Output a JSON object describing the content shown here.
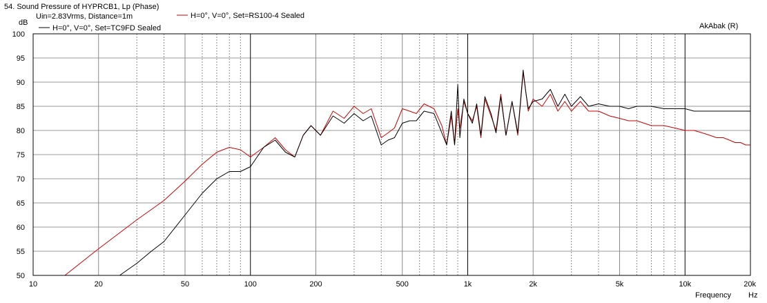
{
  "chart_data": {
    "type": "line",
    "title": "54. Sound Pressure of HYPRCB1, Lp (Phase)",
    "subtitle": "Uin=2.83Vrms, Distance=1m",
    "watermark": "AkAbak (R)",
    "xlabel": "Frequency",
    "xunit": "Hz",
    "ylabel": "dB",
    "xscale": "log",
    "xlim": [
      10,
      20000
    ],
    "ylim": [
      50,
      100
    ],
    "grid": true,
    "x_tick_labels": [
      {
        "v": 10,
        "label": "10"
      },
      {
        "v": 20,
        "label": "20"
      },
      {
        "v": 50,
        "label": "50"
      },
      {
        "v": 100,
        "label": "100"
      },
      {
        "v": 200,
        "label": "200"
      },
      {
        "v": 500,
        "label": "500"
      },
      {
        "v": 1000,
        "label": "1k"
      },
      {
        "v": 2000,
        "label": "2k"
      },
      {
        "v": 5000,
        "label": "5k"
      },
      {
        "v": 10000,
        "label": "10k"
      },
      {
        "v": 20000,
        "label": "20k"
      }
    ],
    "y_tick_labels": [
      "100",
      "95",
      "90",
      "85",
      "80",
      "75",
      "70",
      "65",
      "60",
      "55",
      "50"
    ],
    "series": [
      {
        "name": "H=0°, V=0°, Set=RS100-4 Sealed",
        "color": "#cc0000",
        "x": [
          14,
          20,
          30,
          40,
          50,
          60,
          70,
          80,
          90,
          100,
          115,
          130,
          145,
          160,
          175,
          190,
          210,
          240,
          270,
          300,
          330,
          360,
          400,
          430,
          460,
          500,
          540,
          580,
          630,
          700,
          760,
          800,
          840,
          870,
          900,
          920,
          960,
          1000,
          1050,
          1100,
          1150,
          1200,
          1280,
          1350,
          1420,
          1500,
          1600,
          1700,
          1800,
          1850,
          1900,
          2000,
          2200,
          2400,
          2600,
          2800,
          3000,
          3300,
          3600,
          4000,
          4500,
          5000,
          5500,
          6000,
          7000,
          8000,
          9000,
          10000,
          11000,
          12000,
          13000,
          14000,
          15000,
          16000,
          17000,
          18000,
          19000,
          20000
        ],
        "y": [
          50,
          55.5,
          61.5,
          65.5,
          69.5,
          73,
          75.5,
          76.5,
          76,
          74.5,
          76.5,
          78.5,
          76,
          74.5,
          79,
          81,
          79,
          84,
          82.5,
          85,
          83.5,
          84.5,
          78.5,
          79.5,
          80.5,
          84.5,
          84,
          83.5,
          85.5,
          84.5,
          81,
          77,
          83,
          77,
          84.5,
          80.5,
          86,
          83.5,
          82,
          85,
          78.5,
          86.5,
          83,
          80,
          87.5,
          79,
          86,
          79,
          92,
          88,
          84,
          86.5,
          85,
          87.5,
          84,
          86,
          84,
          86,
          84,
          84,
          83,
          82.5,
          82,
          82,
          81,
          81,
          80.5,
          80,
          80,
          79.5,
          79,
          78.5,
          78.5,
          78,
          77.5,
          77.5,
          77,
          77
        ]
      },
      {
        "name": "H=0°, V=0°, Set=TC9FD Sealed",
        "color": "#000000",
        "x": [
          10,
          20,
          25,
          30,
          35,
          40,
          50,
          60,
          70,
          80,
          90,
          100,
          115,
          130,
          145,
          160,
          175,
          190,
          210,
          240,
          270,
          300,
          330,
          360,
          400,
          430,
          460,
          500,
          540,
          580,
          630,
          700,
          760,
          800,
          840,
          870,
          900,
          920,
          960,
          1000,
          1050,
          1100,
          1150,
          1200,
          1280,
          1350,
          1420,
          1500,
          1600,
          1700,
          1800,
          1850,
          1900,
          2000,
          2200,
          2400,
          2600,
          2800,
          3000,
          3300,
          3600,
          4000,
          4500,
          5000,
          5500,
          6000,
          7000,
          8000,
          9000,
          10000,
          11000,
          12000,
          13000,
          14000,
          15000,
          16000,
          17000,
          18000,
          19000,
          20000
        ],
        "y": [
          50,
          50,
          50,
          52.5,
          55,
          57,
          62.5,
          67,
          70,
          71.5,
          71.5,
          72.5,
          76.5,
          78,
          75.5,
          74.5,
          79,
          81,
          79,
          83,
          81.5,
          83.5,
          82,
          83,
          77,
          78,
          78.5,
          81.5,
          82,
          82,
          84,
          83.5,
          79.5,
          77,
          84,
          77,
          89.5,
          78.5,
          86.5,
          83.5,
          81.5,
          85.5,
          79,
          87,
          83.5,
          79.5,
          87,
          79,
          86,
          79.5,
          92.5,
          88,
          84.5,
          86,
          86.5,
          88.5,
          85,
          87.5,
          85,
          87,
          85,
          85.5,
          85,
          85,
          84.5,
          85,
          85,
          84.5,
          84.5,
          84.5,
          84,
          84,
          84,
          84,
          84,
          84,
          84,
          84,
          84,
          84
        ]
      }
    ]
  }
}
